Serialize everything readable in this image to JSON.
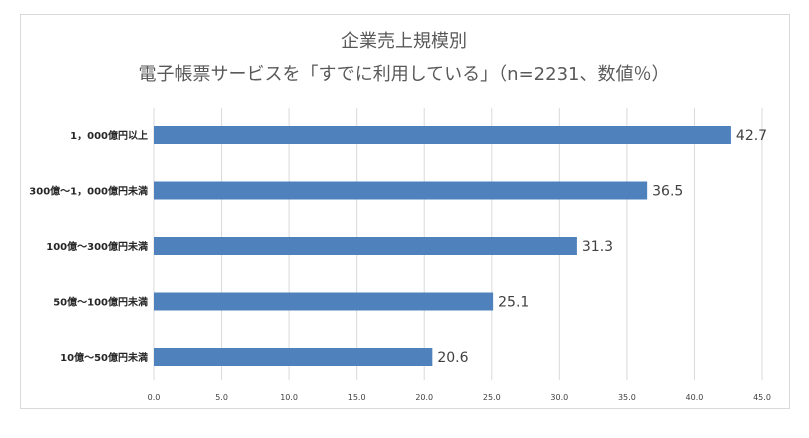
{
  "chart_data": {
    "type": "bar",
    "orientation": "horizontal",
    "title": "企業売上規模別",
    "subtitle": "電子帳票サービスを「すでに利用している」（n=2231、数値％）",
    "categories": [
      "1，000億円以上",
      "300億～1，000億円未満",
      "100億～300億円未満",
      "50億～100億円未満",
      "10億～50億円未満"
    ],
    "values": [
      42.7,
      36.5,
      31.3,
      25.1,
      20.6
    ],
    "value_labels": [
      "42.7",
      "36.5",
      "31.3",
      "25.1",
      "20.6"
    ],
    "xlim": [
      0,
      45
    ],
    "xticks": [
      "0.0",
      "5.0",
      "10.0",
      "15.0",
      "20.0",
      "25.0",
      "30.0",
      "35.0",
      "40.0",
      "45.0"
    ],
    "xlabel": "",
    "ylabel": "",
    "grid": true,
    "legend": "none",
    "bar_color": "#4f81bd",
    "grid_color": "#d9d9d9"
  }
}
